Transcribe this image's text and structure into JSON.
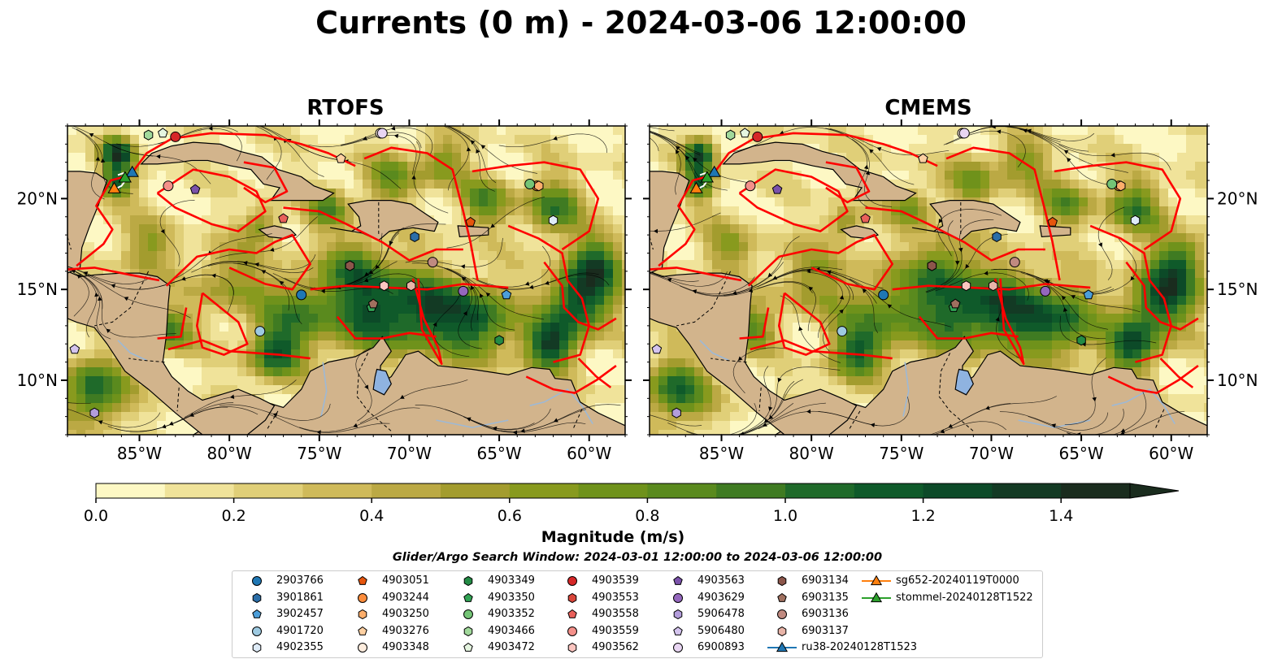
{
  "title": "Currents (0 m) - 2024-03-06 12:00:00",
  "panels": [
    {
      "title": "RTOFS"
    },
    {
      "title": "CMEMS"
    }
  ],
  "colors": {
    "land": "#d2b48c",
    "transects": "#ff0000",
    "rivers": "#9db9d6",
    "streamlines": "#000000"
  },
  "chart_data": {
    "type": "heatmap",
    "variable": "Current magnitude",
    "map_extent": {
      "lon": [
        -89,
        -58
      ],
      "lat": [
        7,
        24
      ]
    },
    "x_ticks": [
      "85°W",
      "80°W",
      "75°W",
      "70°W",
      "65°W",
      "60°W"
    ],
    "y_ticks": [
      "20°N",
      "15°N",
      "10°N"
    ],
    "x_tick_values": [
      -85,
      -80,
      -75,
      -70,
      -65,
      -60
    ],
    "y_tick_values": [
      20,
      15,
      10
    ],
    "colorbar": {
      "label": "Magnitude (m/s)",
      "ticks": [
        "0.0",
        "0.2",
        "0.4",
        "0.6",
        "0.8",
        "1.0",
        "1.2",
        "1.4"
      ],
      "range": [
        0,
        1.5
      ],
      "extend": "max",
      "colors": [
        "#fdf8c4",
        "#f0e39a",
        "#e0cf78",
        "#cfba5a",
        "#bba944",
        "#a39c2e",
        "#889a1e",
        "#6f921b",
        "#5a8a1e",
        "#3f7b22",
        "#1f6a2a",
        "#0f5a2a",
        "#0c4a28",
        "#133a24",
        "#1a2c1e"
      ]
    },
    "search_window": "Glider/Argo Search Window: 2024-03-01 12:00:00 to 2024-03-06 12:00:00",
    "legend": [
      {
        "label": "2903766",
        "marker": "circle",
        "color": "#1f77b4"
      },
      {
        "label": "3901861",
        "marker": "hexagon",
        "color": "#2b6ea8"
      },
      {
        "label": "3902457",
        "marker": "pentagon",
        "color": "#4c9ed9"
      },
      {
        "label": "4901720",
        "marker": "circle",
        "color": "#9ecae1"
      },
      {
        "label": "4902355",
        "marker": "hexagon",
        "color": "#deebf7"
      },
      {
        "label": "4903051",
        "marker": "pentagon",
        "color": "#e6550d"
      },
      {
        "label": "4903244",
        "marker": "circle",
        "color": "#fd8d3c"
      },
      {
        "label": "4903250",
        "marker": "hexagon",
        "color": "#fdae6b"
      },
      {
        "label": "4903276",
        "marker": "pentagon",
        "color": "#fdd0a2"
      },
      {
        "label": "4903348",
        "marker": "circle",
        "color": "#feedde"
      },
      {
        "label": "4903349",
        "marker": "hexagon",
        "color": "#238b45"
      },
      {
        "label": "4903350",
        "marker": "pentagon",
        "color": "#31a354"
      },
      {
        "label": "4903352",
        "marker": "circle",
        "color": "#74c476"
      },
      {
        "label": "4903466",
        "marker": "hexagon",
        "color": "#a1d99b"
      },
      {
        "label": "4903472",
        "marker": "pentagon",
        "color": "#e5f5e0"
      },
      {
        "label": "4903539",
        "marker": "circle",
        "color": "#d62728"
      },
      {
        "label": "4903553",
        "marker": "hexagon",
        "color": "#d9463a"
      },
      {
        "label": "4903558",
        "marker": "pentagon",
        "color": "#e8605a"
      },
      {
        "label": "4903559",
        "marker": "circle",
        "color": "#f4908a"
      },
      {
        "label": "4903562",
        "marker": "hexagon",
        "color": "#fcc5c0"
      },
      {
        "label": "4903563",
        "marker": "pentagon",
        "color": "#7b52ab"
      },
      {
        "label": "4903629",
        "marker": "circle",
        "color": "#9467bd"
      },
      {
        "label": "5906478",
        "marker": "hexagon",
        "color": "#b39ddb"
      },
      {
        "label": "5906480",
        "marker": "pentagon",
        "color": "#d4c4ee"
      },
      {
        "label": "6900893",
        "marker": "circle",
        "color": "#e8d5f2"
      },
      {
        "label": "6903134",
        "marker": "hexagon",
        "color": "#8c564b"
      },
      {
        "label": "6903135",
        "marker": "pentagon",
        "color": "#a0705f"
      },
      {
        "label": "6903136",
        "marker": "circle",
        "color": "#c08a80"
      },
      {
        "label": "6903137",
        "marker": "hexagon",
        "color": "#e8b4a8"
      },
      {
        "label": "ru38-20240128T1523",
        "marker": "line-triangle",
        "color": "#1f77b4"
      },
      {
        "label": "sg652-20240119T0000",
        "marker": "line-triangle",
        "color": "#ff7f0e"
      },
      {
        "label": "stommel-20240128T1522",
        "marker": "line-triangle",
        "color": "#2ca02c"
      }
    ],
    "platforms": [
      {
        "id": "2903766",
        "lon": -76.0,
        "lat": 14.7
      },
      {
        "id": "3901861",
        "lon": -69.7,
        "lat": 17.9
      },
      {
        "id": "3902457",
        "lon": -64.6,
        "lat": 14.7
      },
      {
        "id": "4901720",
        "lon": -78.3,
        "lat": 12.7
      },
      {
        "id": "4902355",
        "lon": -62.0,
        "lat": 18.8
      },
      {
        "id": "4903051",
        "lon": -66.6,
        "lat": 18.7
      },
      {
        "id": "4903244",
        "lon": -62.9,
        "lat": 20.7
      },
      {
        "id": "4903250",
        "lon": -62.8,
        "lat": 20.7
      },
      {
        "id": "4903276",
        "lon": -73.8,
        "lat": 22.2
      },
      {
        "id": "4903348",
        "lon": -71.6,
        "lat": 23.6
      },
      {
        "id": "4903349",
        "lon": -65.0,
        "lat": 12.2
      },
      {
        "id": "4903350",
        "lon": -72.1,
        "lat": 14.0
      },
      {
        "id": "4903352",
        "lon": -63.3,
        "lat": 20.8
      },
      {
        "id": "4903466",
        "lon": -84.5,
        "lat": 23.5
      },
      {
        "id": "4903472",
        "lon": -83.7,
        "lat": 23.6
      },
      {
        "id": "4903539",
        "lon": -83.0,
        "lat": 23.4
      },
      {
        "id": "4903553",
        "lon": -73.3,
        "lat": 16.3
      },
      {
        "id": "4903558",
        "lon": -77.0,
        "lat": 18.9
      },
      {
        "id": "4903559",
        "lon": -83.4,
        "lat": 20.7
      },
      {
        "id": "4903562",
        "lon": -71.4,
        "lat": 15.2
      },
      {
        "id": "4903563",
        "lon": -81.9,
        "lat": 20.5
      },
      {
        "id": "4903629",
        "lon": -67.0,
        "lat": 14.9
      },
      {
        "id": "5906478",
        "lon": -87.5,
        "lat": 8.2
      },
      {
        "id": "5906480",
        "lon": -88.6,
        "lat": 11.7
      },
      {
        "id": "6900893",
        "lon": -71.5,
        "lat": 23.6
      },
      {
        "id": "6903134",
        "lon": -73.3,
        "lat": 16.3
      },
      {
        "id": "6903135",
        "lon": -72.0,
        "lat": 14.2
      },
      {
        "id": "6903136",
        "lon": -68.7,
        "lat": 16.5
      },
      {
        "id": "6903137",
        "lon": -69.9,
        "lat": 15.2
      }
    ],
    "gliders": [
      {
        "id": "ru38-20240128T1523",
        "lon": -85.4,
        "lat": 21.4
      },
      {
        "id": "sg652-20240119T0000",
        "lon": -86.4,
        "lat": 20.5
      },
      {
        "id": "stommel-20240128T1522",
        "lon": -85.8,
        "lat": 21.1
      }
    ]
  }
}
